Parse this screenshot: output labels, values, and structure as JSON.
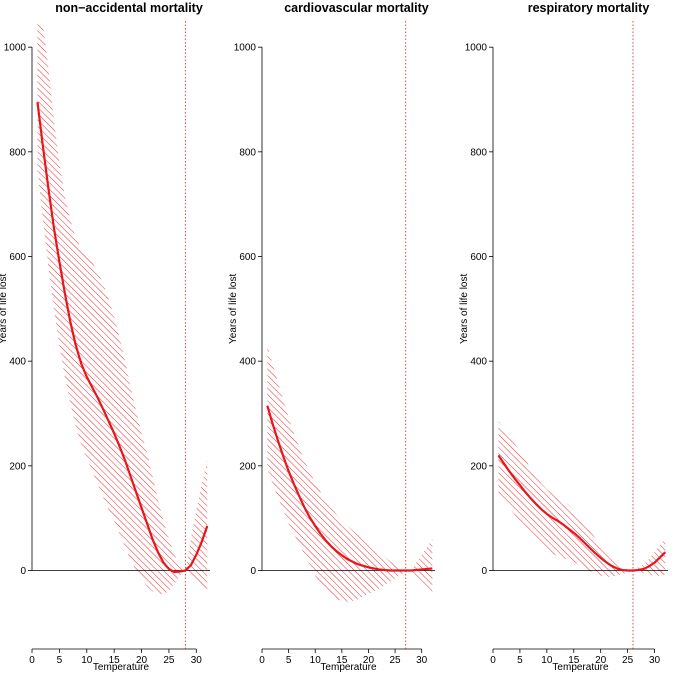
{
  "colors": {
    "curve": "#e8161b",
    "hatch": "#e8161b",
    "axis": "#000000"
  },
  "chart_data": [
    {
      "type": "line",
      "title": "non−accidental mortality",
      "xlabel": "Temperature",
      "ylabel": "Years of life lost",
      "xlim": [
        0,
        32.5
      ],
      "ylim": [
        -150,
        1050
      ],
      "yticks": [
        0,
        200,
        400,
        600,
        800,
        1000
      ],
      "xticks": [
        0,
        5,
        10,
        15,
        20,
        25,
        30
      ],
      "reference_line_x": 28,
      "zero_line": true,
      "series": [
        {
          "x": [
            1,
            2,
            3,
            4,
            5,
            6,
            7,
            8,
            9,
            10,
            11,
            12,
            13,
            14,
            15,
            16,
            17,
            18,
            19,
            20,
            21,
            22,
            23,
            24,
            25,
            26,
            27,
            28,
            29,
            30,
            31,
            32
          ],
          "y": [
            895,
            810,
            730,
            655,
            590,
            530,
            475,
            430,
            395,
            370,
            350,
            330,
            308,
            285,
            262,
            237,
            210,
            180,
            150,
            120,
            90,
            60,
            35,
            15,
            3,
            -3,
            -2,
            0,
            10,
            30,
            55,
            85
          ],
          "lower": [
            765,
            670,
            580,
            500,
            430,
            370,
            320,
            275,
            240,
            215,
            190,
            165,
            140,
            115,
            95,
            70,
            45,
            20,
            0,
            -15,
            -30,
            -40,
            -45,
            -45,
            -40,
            -25,
            -10,
            0,
            -5,
            -20,
            -35,
            -45
          ],
          "upper": [
            1045,
            1045,
            960,
            860,
            780,
            715,
            670,
            635,
            615,
            600,
            588,
            572,
            548,
            518,
            485,
            445,
            400,
            350,
            305,
            262,
            225,
            180,
            135,
            95,
            60,
            30,
            10,
            0,
            60,
            115,
            165,
            210
          ]
        }
      ]
    },
    {
      "type": "line",
      "title": "cardiovascular mortality",
      "xlabel": "Temperature",
      "ylabel": "Years of life lost",
      "xlim": [
        0,
        32.5
      ],
      "ylim": [
        -150,
        1050
      ],
      "yticks": [
        0,
        200,
        400,
        600,
        800,
        1000
      ],
      "xticks": [
        0,
        5,
        10,
        15,
        20,
        25,
        30
      ],
      "reference_line_x": 27,
      "zero_line": true,
      "series": [
        {
          "x": [
            1,
            2,
            3,
            4,
            5,
            6,
            7,
            8,
            9,
            10,
            11,
            12,
            13,
            14,
            15,
            16,
            17,
            18,
            19,
            20,
            21,
            22,
            23,
            24,
            25,
            26,
            27,
            28,
            29,
            30,
            31,
            32
          ],
          "y": [
            315,
            280,
            248,
            218,
            190,
            165,
            142,
            120,
            101,
            85,
            70,
            57,
            46,
            37,
            29,
            22,
            17,
            12,
            9,
            6,
            4,
            2,
            1,
            0,
            0,
            0,
            0,
            0,
            1,
            2,
            3,
            4
          ],
          "lower": [
            195,
            165,
            140,
            115,
            90,
            70,
            50,
            30,
            10,
            -10,
            -25,
            -38,
            -48,
            -55,
            -58,
            -60,
            -58,
            -55,
            -50,
            -45,
            -40,
            -35,
            -28,
            -22,
            -15,
            -8,
            -3,
            0,
            -10,
            -20,
            -30,
            -45
          ],
          "upper": [
            430,
            395,
            360,
            325,
            292,
            262,
            235,
            210,
            188,
            168,
            150,
            134,
            120,
            107,
            96,
            86,
            77,
            68,
            60,
            52,
            44,
            36,
            27,
            18,
            10,
            4,
            1,
            0,
            15,
            30,
            45,
            60
          ]
        }
      ]
    },
    {
      "type": "line",
      "title": "respiratory mortality",
      "xlabel": "Temperature",
      "ylabel": "Years of life lost",
      "xlim": [
        0,
        32.5
      ],
      "ylim": [
        -150,
        1050
      ],
      "yticks": [
        0,
        200,
        400,
        600,
        800,
        1000
      ],
      "xticks": [
        0,
        5,
        10,
        15,
        20,
        25,
        30
      ],
      "reference_line_x": 26,
      "zero_line": true,
      "series": [
        {
          "x": [
            1,
            2,
            3,
            4,
            5,
            6,
            7,
            8,
            9,
            10,
            11,
            12,
            13,
            14,
            15,
            16,
            17,
            18,
            19,
            20,
            21,
            22,
            23,
            24,
            25,
            26,
            27,
            28,
            29,
            30,
            31,
            32
          ],
          "y": [
            220,
            205,
            190,
            176,
            163,
            150,
            138,
            127,
            117,
            108,
            101,
            95,
            88,
            80,
            72,
            63,
            53,
            43,
            33,
            24,
            16,
            9,
            4,
            1,
            0,
            0,
            1,
            3,
            8,
            15,
            25,
            35
          ],
          "lower": [
            150,
            135,
            120,
            107,
            93,
            80,
            68,
            56,
            46,
            38,
            32,
            28,
            24,
            20,
            16,
            11,
            5,
            -1,
            -6,
            -10,
            -12,
            -12,
            -10,
            -7,
            -4,
            0,
            -2,
            -5,
            -8,
            -10,
            -10,
            -8
          ],
          "upper": [
            285,
            272,
            258,
            243,
            228,
            212,
            195,
            180,
            166,
            155,
            147,
            140,
            134,
            126,
            115,
            103,
            90,
            76,
            62,
            48,
            35,
            23,
            13,
            6,
            2,
            0,
            6,
            12,
            22,
            35,
            48,
            62
          ]
        }
      ]
    }
  ]
}
